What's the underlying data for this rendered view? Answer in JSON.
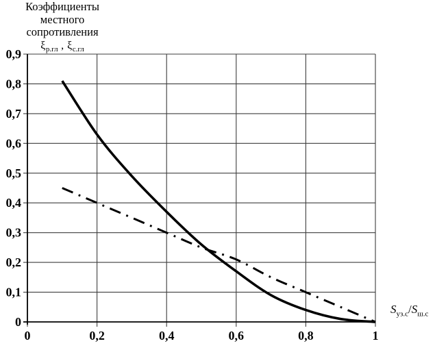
{
  "title": {
    "line1": "Коэффициенты",
    "line2": "местного",
    "line3": "сопротивления"
  },
  "xi_labels": {
    "first_base": "ξ",
    "first_sub": "р.гл",
    "comma": " , ",
    "second_base": "ξ",
    "second_sub": "с.гл"
  },
  "x_axis_label": {
    "first_base": "S",
    "first_sub": "уз.с",
    "slash": "/",
    "second_base": "S",
    "second_sub": "ш.с"
  },
  "chart_data": {
    "type": "line",
    "title": "Коэффициенты местного сопротивления ξр.гл , ξс.гл",
    "xlabel": "Sуз.с/Sш.с",
    "ylabel": "ξр.гл , ξс.гл",
    "xlim": [
      0,
      1
    ],
    "ylim": [
      0,
      0.9
    ],
    "grid": true,
    "legend_position": "none",
    "x": [
      0.1,
      0.2,
      0.3,
      0.4,
      0.5,
      0.6,
      0.7,
      0.8,
      0.9,
      1.0
    ],
    "series": [
      {
        "name": "xi-r-gl-solid-curve",
        "style": "solid",
        "values": [
          0.81,
          0.63,
          0.49,
          0.37,
          0.26,
          0.17,
          0.09,
          0.04,
          0.01,
          0
        ]
      },
      {
        "name": "xi-s-gl-dash-dot-curve",
        "style": "dashdot",
        "values": [
          0.45,
          0.4,
          0.35,
          0.3,
          0.25,
          0.21,
          0.15,
          0.1,
          0.05,
          0
        ]
      }
    ],
    "x_ticks": {
      "values": [
        0,
        0.2,
        0.4,
        0.6,
        0.8,
        1
      ],
      "labels": [
        "0",
        "0,2",
        "0,4",
        "0,6",
        "0,8",
        "1"
      ]
    },
    "y_ticks": {
      "values": [
        0,
        0.1,
        0.2,
        0.3,
        0.4,
        0.5,
        0.6,
        0.7,
        0.8,
        0.9
      ],
      "labels": [
        "0",
        "0,1",
        "0,2",
        "0,3",
        "0,4",
        "0,5",
        "0,6",
        "0,7",
        "0,8",
        "0,9"
      ]
    },
    "colors": {
      "curves": "#000000",
      "grid": "#3d3d3d",
      "axis": "#000000",
      "background": "#ffffff",
      "text": "#000000"
    }
  }
}
